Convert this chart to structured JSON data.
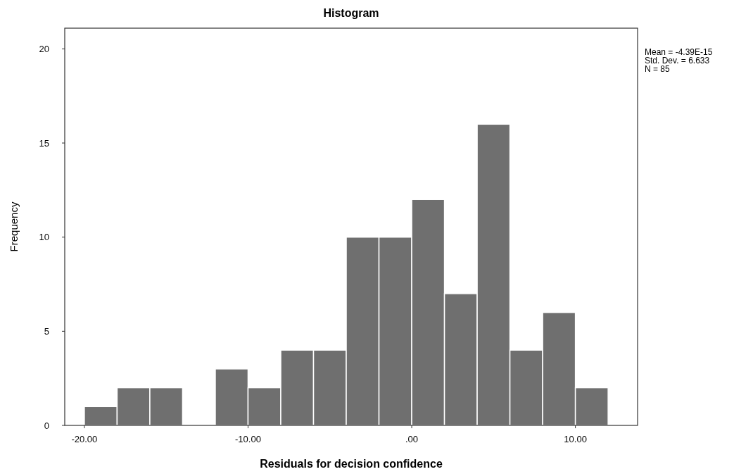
{
  "chart_data": {
    "type": "histogram",
    "title": "Histogram",
    "xlabel": "Residuals for decision confidence",
    "ylabel": "Frequency",
    "bins": [
      -20,
      -18,
      -16,
      -14,
      -12,
      -10,
      -8,
      -6,
      -4,
      -2,
      0,
      2,
      4,
      6,
      8,
      10,
      12
    ],
    "values": [
      1,
      2,
      2,
      0,
      3,
      2,
      4,
      4,
      10,
      10,
      12,
      7,
      16,
      4,
      6,
      2
    ],
    "color": "#6f6f6f",
    "xlim": [
      -21.2,
      13.8
    ],
    "xticks": [
      {
        "value": -20,
        "label": "-20.00"
      },
      {
        "value": -10,
        "label": "-10.00"
      },
      {
        "value": 0,
        "label": ".00"
      },
      {
        "value": 10,
        "label": "10.00"
      }
    ],
    "ylim": [
      0,
      21.1
    ],
    "yticks": [
      0,
      5,
      10,
      15,
      20
    ],
    "annotations": [
      "Mean = -4.39E-15",
      "Std. Dev. = 6.633",
      "N = 85"
    ],
    "grid": false
  }
}
